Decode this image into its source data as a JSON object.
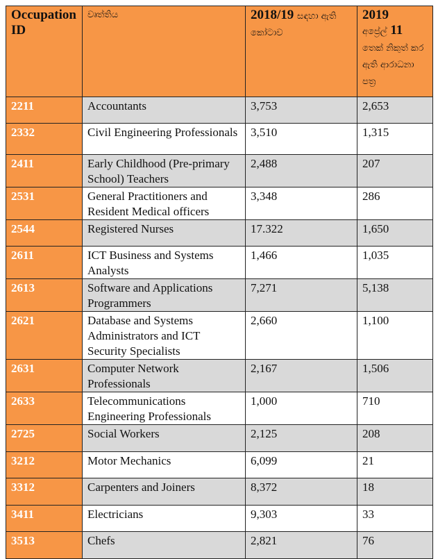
{
  "colors": {
    "header": "#f79646",
    "id_column": "#f79646",
    "stripe": "#d9d9d9"
  },
  "header": {
    "id": "Occupation ID",
    "occupation": "වෘත්තිය",
    "quota_year": "2018/19",
    "quota_text": "සඳහා ඇති කෝටාව",
    "issued_year": "2019",
    "issued_month": "අප්‍රේල්",
    "issued_day": "11",
    "issued_text": "තෙක් නිකුත් කර ඇති ආරාධනා පත්‍ර"
  },
  "rows": [
    {
      "id": "2211",
      "occupation": "Accountants",
      "quota": "3,753",
      "issued": "2,653"
    },
    {
      "id": "2332",
      "occupation": "Civil Engineering Professionals",
      "quota": "3,510",
      "issued": "1,315"
    },
    {
      "id": "2411",
      "occupation": "Early Childhood (Pre-primary School) Teachers",
      "quota": "2,488",
      "issued": "207"
    },
    {
      "id": "2531",
      "occupation": "General Practitioners and Resident Medical officers",
      "quota": "3,348",
      "issued": "286"
    },
    {
      "id": "2544",
      "occupation": "Registered Nurses",
      "quota": "17.322",
      "issued": "1,650"
    },
    {
      "id": "2611",
      "occupation": "ICT Business and Systems Analysts",
      "quota": "1,466",
      "issued": "1,035"
    },
    {
      "id": "2613",
      "occupation": "Software and Applications Programmers",
      "quota": "7,271",
      "issued": "5,138"
    },
    {
      "id": "2621",
      "occupation": "Database and Systems Administrators and ICT Security Specialists",
      "quota": "2,660",
      "issued": "1,100"
    },
    {
      "id": "2631",
      "occupation": "Computer Network Professionals",
      "quota": "2,167",
      "issued": "1,506"
    },
    {
      "id": "2633",
      "occupation": "Telecommunications Engineering Professionals",
      "quota": "1,000",
      "issued": "710"
    },
    {
      "id": "2725",
      "occupation": "Social Workers",
      "quota": "2,125",
      "issued": "208"
    },
    {
      "id": "3212",
      "occupation": "Motor Mechanics",
      "quota": "6,099",
      "issued": "21"
    },
    {
      "id": "3312",
      "occupation": "Carpenters and Joiners",
      "quota": "8,372",
      "issued": "18"
    },
    {
      "id": "3411",
      "occupation": "Electricians",
      "quota": "9,303",
      "issued": "33"
    },
    {
      "id": "3513",
      "occupation": "Chefs",
      "quota": "2,821",
      "issued": "76"
    }
  ]
}
